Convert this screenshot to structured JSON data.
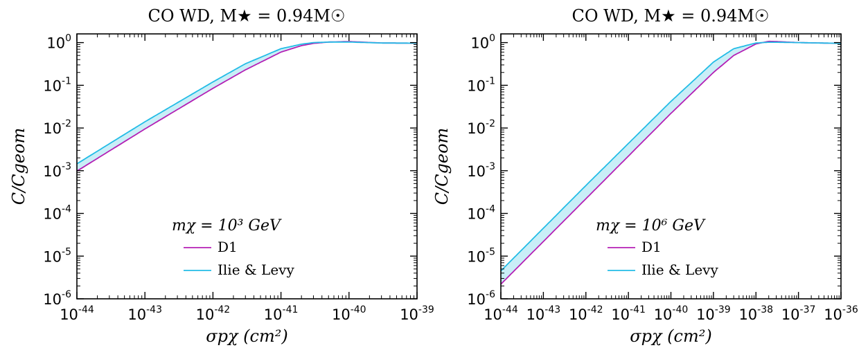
{
  "chart_data": [
    {
      "type": "line",
      "title": "CO WD,  M★ = 0.94M☉",
      "xlabel": "σpχ (cm²)",
      "ylabel": "C/Cgeom",
      "xscale": "log",
      "yscale": "log",
      "xlim": [
        1e-44,
        1e-39
      ],
      "ylim": [
        1e-06,
        1.6
      ],
      "x_ticks": [
        "10^-44",
        "10^-43",
        "10^-42",
        "10^-41",
        "10^-40",
        "10^-39"
      ],
      "y_ticks": [
        "10^-6",
        "10^-5",
        "10^-4",
        "10^-3",
        "10^-2",
        "10^-1",
        "10^0"
      ],
      "legend_title": "mχ = 10³ GeV",
      "legend_position": "lower-right",
      "fill_between": {
        "series": [
          "D1",
          "Ilie & Levy"
        ],
        "color": "#c9eef7"
      },
      "series": [
        {
          "name": "D1",
          "color": "#b41fb4",
          "x": [
            1e-44,
            1e-43,
            1e-42,
            3e-42,
            1e-41,
            2e-41,
            3e-41,
            5e-41,
            1e-40,
            3e-40,
            1e-39
          ],
          "y": [
            0.00098,
            0.0095,
            0.085,
            0.23,
            0.6,
            0.85,
            0.96,
            1.03,
            1.06,
            0.98,
            0.97
          ]
        },
        {
          "name": "Ilie & Levy",
          "color": "#22bce6",
          "x": [
            1e-44,
            1e-43,
            1e-42,
            3e-42,
            1e-41,
            2e-41,
            3e-41,
            5e-41,
            1e-40,
            3e-40,
            1e-39
          ],
          "y": [
            0.00145,
            0.014,
            0.12,
            0.32,
            0.72,
            0.92,
            1.0,
            1.03,
            1.03,
            0.98,
            0.97
          ]
        }
      ]
    },
    {
      "type": "line",
      "title": "CO WD,  M★ = 0.94M☉",
      "xlabel": "σpχ (cm²)",
      "ylabel": "C/Cgeom",
      "xscale": "log",
      "yscale": "log",
      "xlim": [
        1e-44,
        1e-36
      ],
      "ylim": [
        1e-06,
        1.6
      ],
      "x_ticks": [
        "10^-44",
        "10^-43",
        "10^-42",
        "10^-41",
        "10^-40",
        "10^-39",
        "10^-38",
        "10^-37",
        "10^-36"
      ],
      "y_ticks": [
        "10^-6",
        "10^-5",
        "10^-4",
        "10^-3",
        "10^-2",
        "10^-1",
        "10^0"
      ],
      "legend_title": "mχ = 10⁶ GeV",
      "legend_position": "lower-right",
      "fill_between": {
        "series": [
          "D1",
          "Ilie & Levy"
        ],
        "color": "#c9eef7"
      },
      "series": [
        {
          "name": "D1",
          "color": "#b41fb4",
          "x": [
            1e-44,
            1e-42,
            1e-40,
            1e-39,
            3e-39,
            1e-38,
            2e-38,
            3e-38,
            1e-37,
            1e-36
          ],
          "y": [
            2.2e-06,
            0.00022,
            0.022,
            0.2,
            0.5,
            0.93,
            1.07,
            1.06,
            1.0,
            0.96
          ]
        },
        {
          "name": "Ilie & Levy",
          "color": "#22bce6",
          "x": [
            1e-44,
            1e-42,
            1e-40,
            1e-39,
            3e-39,
            1e-38,
            2e-38,
            3e-38,
            1e-37,
            1e-36
          ],
          "y": [
            4.5e-06,
            0.00045,
            0.042,
            0.35,
            0.72,
            0.98,
            1.02,
            1.02,
            1.0,
            0.96
          ]
        }
      ]
    }
  ]
}
